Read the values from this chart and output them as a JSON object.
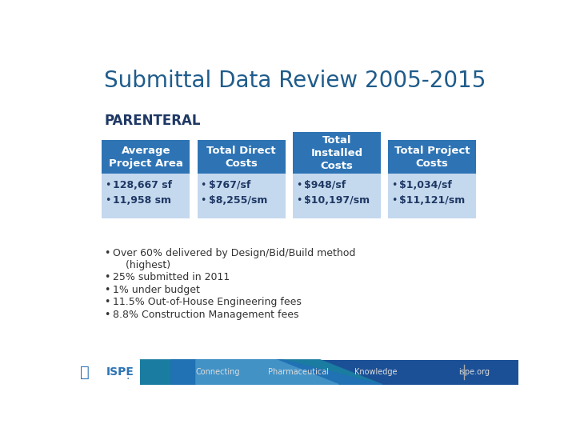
{
  "title": "Submittal Data Review 2005-2015",
  "section_label": "PARENTERAL",
  "background_color": "#FFFFFF",
  "title_color": "#1F5C8B",
  "section_label_color": "#1F3864",
  "boxes": [
    {
      "header": "Average\nProject Area",
      "header_bg": "#2E74B5",
      "header_color": "#FFFFFF",
      "body_bg": "#C5D9EE",
      "body_color": "#1F3864",
      "bullets": [
        "128,667 sf",
        "11,958 sm"
      ],
      "header_lines": 2
    },
    {
      "header": "Total Direct\nCosts",
      "header_bg": "#2E74B5",
      "header_color": "#FFFFFF",
      "body_bg": "#C5D9EE",
      "body_color": "#1F3864",
      "bullets": [
        "$767/sf",
        "$8,255/sm"
      ],
      "header_lines": 2
    },
    {
      "header": "Total\nInstalled\nCosts",
      "header_bg": "#2E74B5",
      "header_color": "#FFFFFF",
      "body_bg": "#C5D9EE",
      "body_color": "#1F3864",
      "bullets": [
        "$948/sf",
        "$10,197/sm"
      ],
      "header_lines": 3
    },
    {
      "header": "Total Project\nCosts",
      "header_bg": "#2E74B5",
      "header_color": "#FFFFFF",
      "body_bg": "#C5D9EE",
      "body_color": "#1F3864",
      "bullets": [
        "$1,034/sf",
        "$11,121/sm"
      ],
      "header_lines": 2
    }
  ],
  "bullet_points": [
    "Over 60% delivered by Design/Bid/Build method",
    "    (highest)",
    "25% submitted in 2011",
    "1% under budget",
    "11.5% Out-of-House Engineering fees",
    "8.8% Construction Management fees"
  ],
  "bullet_show": [
    true,
    false,
    true,
    true,
    true,
    true
  ],
  "footer_texts": [
    "Connecting",
    "Pharmaceutical",
    "Knowledge",
    "ispe.org"
  ],
  "footer_text_color": "#CCCCCC",
  "footer_blue": "#1B5EA6",
  "footer_teal": "#1A7CA0",
  "footer_dark_blue": "#0D3B6E"
}
